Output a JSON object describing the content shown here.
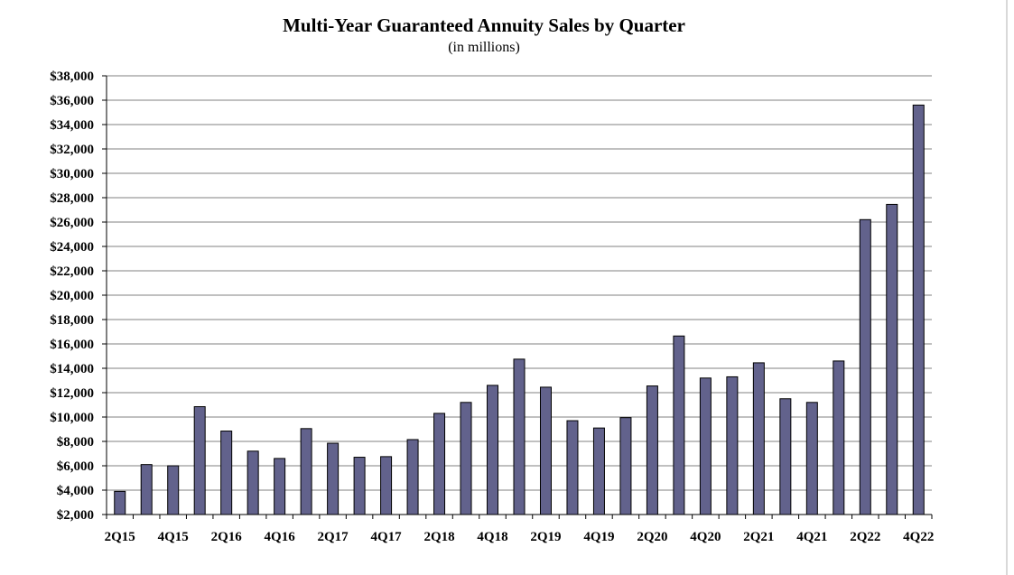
{
  "chart_data": {
    "type": "bar",
    "title": "Multi-Year Guaranteed Annuity Sales by Quarter",
    "subtitle": "(in millions)",
    "x": [
      "2Q15",
      "",
      "4Q15",
      "",
      "2Q16",
      "",
      "4Q16",
      "",
      "2Q17",
      "",
      "4Q17",
      "",
      "2Q18",
      "",
      "4Q18",
      "",
      "2Q19",
      "",
      "4Q19",
      "",
      "2Q20",
      "",
      "4Q20",
      "",
      "2Q21",
      "",
      "4Q21",
      "",
      "2Q22",
      "",
      "4Q22"
    ],
    "values": [
      3900,
      6100,
      6000,
      10850,
      8850,
      7200,
      6600,
      9050,
      7850,
      6700,
      6750,
      8150,
      10300,
      11200,
      12600,
      14750,
      12450,
      9700,
      9100,
      9950,
      12550,
      16650,
      13200,
      13300,
      14450,
      11500,
      11200,
      14600,
      26200,
      27450,
      35600
    ],
    "ylim": [
      2000,
      38000
    ],
    "yticks": [
      2000,
      4000,
      6000,
      8000,
      10000,
      12000,
      14000,
      16000,
      18000,
      20000,
      22000,
      24000,
      26000,
      28000,
      30000,
      32000,
      34000,
      36000,
      38000
    ],
    "ytick_labels": [
      "$2,000",
      "$4,000",
      "$6,000",
      "$8,000",
      "$10,000",
      "$12,000",
      "$14,000",
      "$16,000",
      "$18,000",
      "$20,000",
      "$22,000",
      "$24,000",
      "$26,000",
      "$28,000",
      "$30,000",
      "$32,000",
      "$34,000",
      "$36,000",
      "$38,000"
    ],
    "grid": true,
    "legend": "none",
    "bar_color": "#62628c",
    "bar_edge_color": "#000000",
    "grid_color": "#808080"
  }
}
